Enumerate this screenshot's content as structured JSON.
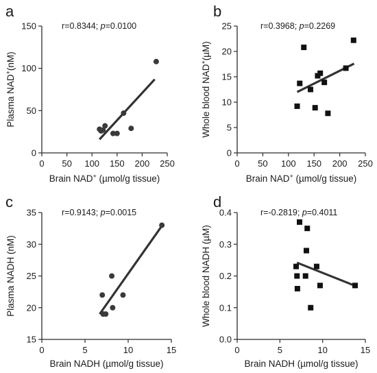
{
  "chart_data": [
    {
      "panel": "a",
      "type": "scatter",
      "marker": "circle",
      "stat_text": "r=0.8344; p=0.0100",
      "xlabel": "Brain NAD⁺ (µmol/g tissue)",
      "ylabel": "Plasma NAD⁺(nM)",
      "xlim": [
        0,
        250
      ],
      "ylim": [
        0,
        150
      ],
      "xticks": [
        0,
        50,
        100,
        150,
        200,
        250
      ],
      "yticks": [
        0,
        50,
        100,
        150
      ],
      "points": [
        [
          115,
          28
        ],
        [
          118,
          26
        ],
        [
          122,
          27
        ],
        [
          126,
          32
        ],
        [
          142,
          23
        ],
        [
          150,
          23
        ],
        [
          163,
          47
        ],
        [
          178,
          29
        ],
        [
          228,
          108
        ]
      ],
      "fit": [
        [
          115,
          16
        ],
        [
          225,
          87
        ]
      ]
    },
    {
      "panel": "b",
      "type": "scatter",
      "marker": "square",
      "stat_text": "r=0.3968; p=0.2269",
      "xlabel": "Brain NAD⁺ (µmol/g tissue)",
      "ylabel": "Whole blood NAD⁺(µM)",
      "xlim": [
        0,
        250
      ],
      "ylim": [
        0,
        25
      ],
      "xticks": [
        0,
        50,
        100,
        150,
        200,
        250
      ],
      "yticks": [
        0,
        5,
        10,
        15,
        20,
        25
      ],
      "points": [
        [
          117,
          9.2
        ],
        [
          122,
          13.7
        ],
        [
          130,
          20.8
        ],
        [
          143,
          12.5
        ],
        [
          152,
          8.9
        ],
        [
          157,
          15.2
        ],
        [
          162,
          15.7
        ],
        [
          170,
          13.9
        ],
        [
          177,
          7.8
        ],
        [
          212,
          16.7
        ],
        [
          227,
          22.2
        ]
      ],
      "fit": [
        [
          117,
          12.0
        ],
        [
          228,
          17.6
        ]
      ]
    },
    {
      "panel": "c",
      "type": "scatter",
      "marker": "circle",
      "stat_text": "r=0.9143; p=0.0015",
      "xlabel": "Brain NADH (µmol/g tissue)",
      "ylabel": "Plasma NADH (nM)",
      "xlim": [
        0,
        15
      ],
      "ylim": [
        15,
        35
      ],
      "xticks": [
        0,
        5,
        10,
        15
      ],
      "yticks": [
        15,
        20,
        25,
        30,
        35
      ],
      "points": [
        [
          7.0,
          22
        ],
        [
          7.1,
          19
        ],
        [
          7.4,
          19
        ],
        [
          8.1,
          25
        ],
        [
          8.2,
          20
        ],
        [
          9.4,
          22
        ],
        [
          13.9,
          33
        ]
      ],
      "fit": [
        [
          6.7,
          19.0
        ],
        [
          13.9,
          32.9
        ]
      ]
    },
    {
      "panel": "d",
      "type": "scatter",
      "marker": "square",
      "stat_text": "r=-0.2819; p=0.4011",
      "xlabel": "Brain NADH (µmol/g tissue)",
      "ylabel": "Whole blood NADH (µM)",
      "xlim": [
        0,
        15
      ],
      "ylim": [
        0.0,
        0.4
      ],
      "xticks": [
        0,
        5,
        10,
        15
      ],
      "yticks": [
        0.0,
        0.1,
        0.2,
        0.3,
        0.4
      ],
      "points": [
        [
          6.9,
          0.23
        ],
        [
          7.0,
          0.2
        ],
        [
          7.05,
          0.16
        ],
        [
          7.3,
          0.37
        ],
        [
          8.0,
          0.2
        ],
        [
          8.1,
          0.28
        ],
        [
          8.2,
          0.35
        ],
        [
          8.6,
          0.1
        ],
        [
          9.3,
          0.23
        ],
        [
          9.7,
          0.17
        ],
        [
          13.8,
          0.17
        ]
      ],
      "fit": [
        [
          7.0,
          0.242
        ],
        [
          13.9,
          0.168
        ]
      ]
    }
  ]
}
